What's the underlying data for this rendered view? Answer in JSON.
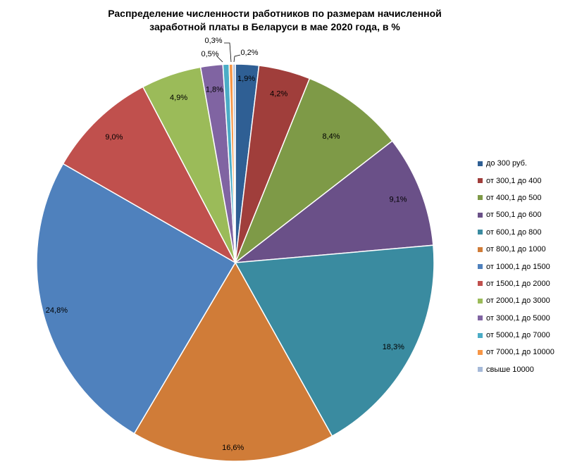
{
  "chart_data": {
    "type": "pie",
    "title_lines": [
      "Распределение численности работников  по размерам начисленной",
      "заработной платы в Беларуси в мае 2020  года, в %"
    ],
    "legend_position": "right",
    "slices": [
      {
        "label": "до 300 руб.",
        "value": 1.9,
        "display": "1,9%",
        "color": "#2F5F94"
      },
      {
        "label": "от 300,1 до 400",
        "value": 4.2,
        "display": "4,2%",
        "color": "#A03E3B"
      },
      {
        "label": "от 400,1 до 500",
        "value": 8.4,
        "display": "8,4%",
        "color": "#7E9A47"
      },
      {
        "label": "от 500,1 до 600",
        "value": 9.1,
        "display": "9,1%",
        "color": "#6A5088"
      },
      {
        "label": "от 600,1 до 800",
        "value": 18.3,
        "display": "18,3%",
        "color": "#3A8BA0"
      },
      {
        "label": "от 800,1 до 1000",
        "value": 16.6,
        "display": "16,6%",
        "color": "#D07C38"
      },
      {
        "label": "от 1000,1 до 1500",
        "value": 24.8,
        "display": "24,8%",
        "color": "#4F81BD"
      },
      {
        "label": "от 1500,1 до 2000",
        "value": 9.0,
        "display": "9,0%",
        "color": "#C0504D"
      },
      {
        "label": "от 2000,1 до 3000",
        "value": 4.9,
        "display": "4,9%",
        "color": "#9BBB59"
      },
      {
        "label": "от 3000,1 до 5000",
        "value": 1.8,
        "display": "1,8%",
        "color": "#8064A2"
      },
      {
        "label": "от 5000,1 до 7000",
        "value": 0.5,
        "display": "0,5%",
        "color": "#4BACC6"
      },
      {
        "label": "от 7000,1 до 10000",
        "value": 0.3,
        "display": "0,3%",
        "color": "#F79646"
      },
      {
        "label": "свыше 10000",
        "value": 0.2,
        "display": "0,2%",
        "color": "#A5B9D8"
      }
    ]
  }
}
